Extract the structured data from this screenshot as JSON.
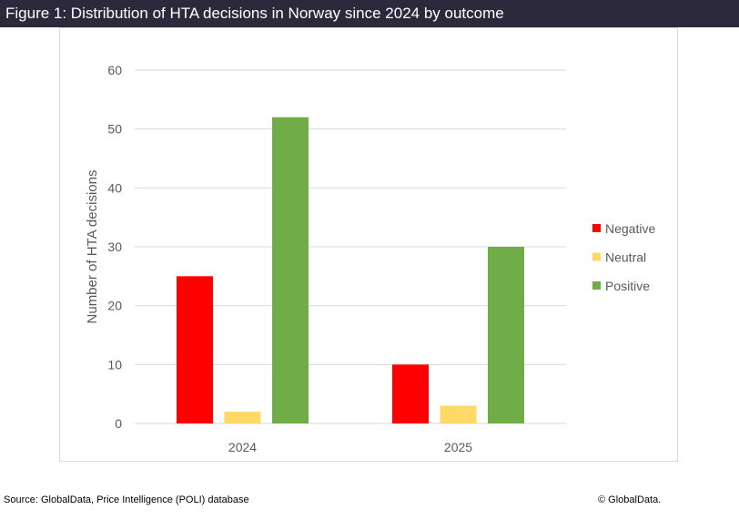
{
  "title": "Figure 1: Distribution of HTA decisions in Norway since 2024 by outcome",
  "footer": {
    "source": "Source: GlobalData, Price Intelligence (POLI) database",
    "copyright": "© GlobalData."
  },
  "chart_data": {
    "type": "bar",
    "title": "",
    "xlabel": "",
    "ylabel": "Number of HTA decisions",
    "categories": [
      "2024",
      "2025"
    ],
    "series": [
      {
        "name": "Negative",
        "color": "#ff0000",
        "values": [
          25,
          10
        ]
      },
      {
        "name": "Neutral",
        "color": "#ffd966",
        "values": [
          2,
          3
        ]
      },
      {
        "name": "Positive",
        "color": "#70ad47",
        "values": [
          52,
          30
        ]
      }
    ],
    "ylim": [
      0,
      60
    ],
    "yticks": [
      "0",
      "10",
      "20",
      "30",
      "40",
      "50",
      "60"
    ],
    "grid": true,
    "legend": "right"
  }
}
